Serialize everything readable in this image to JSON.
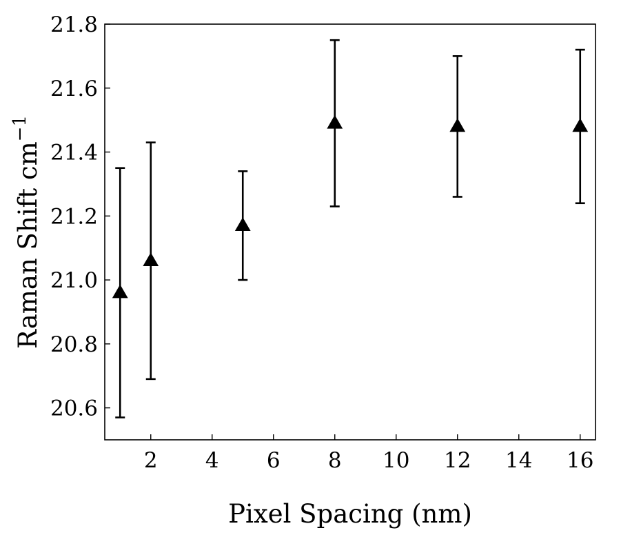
{
  "chart_data": {
    "type": "scatter",
    "title": "",
    "xlabel": "Pixel Spacing (nm)",
    "ylabel": "Raman Shift cm",
    "ylabel_superscript": "−1",
    "xlim": [
      0.5,
      16.5
    ],
    "ylim": [
      20.5,
      21.8
    ],
    "xticks": [
      2,
      4,
      6,
      8,
      10,
      12,
      14,
      16
    ],
    "yticks": [
      20.6,
      20.8,
      21.0,
      21.2,
      21.4,
      21.6,
      21.8
    ],
    "xtick_labels": [
      "2",
      "4",
      "6",
      "8",
      "10",
      "12",
      "14",
      "16"
    ],
    "ytick_labels": [
      "20.6",
      "20.8",
      "21.0",
      "21.2",
      "21.4",
      "21.6",
      "21.8"
    ],
    "grid": false,
    "marker": "triangle-up",
    "color": "#000000",
    "points": [
      {
        "x": 1,
        "y": 20.96,
        "yerr_low": 20.57,
        "yerr_high": 21.35
      },
      {
        "x": 2,
        "y": 21.06,
        "yerr_low": 20.69,
        "yerr_high": 21.43
      },
      {
        "x": 5,
        "y": 21.17,
        "yerr_low": 21.0,
        "yerr_high": 21.34
      },
      {
        "x": 8,
        "y": 21.49,
        "yerr_low": 21.23,
        "yerr_high": 21.75
      },
      {
        "x": 12,
        "y": 21.48,
        "yerr_low": 21.26,
        "yerr_high": 21.7
      },
      {
        "x": 16,
        "y": 21.48,
        "yerr_low": 21.24,
        "yerr_high": 21.72
      }
    ]
  }
}
